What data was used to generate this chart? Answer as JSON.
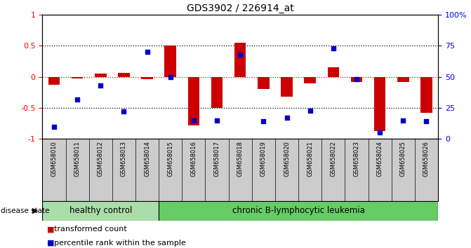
{
  "title": "GDS3902 / 226914_at",
  "samples": [
    "GSM658010",
    "GSM658011",
    "GSM658012",
    "GSM658013",
    "GSM658014",
    "GSM658015",
    "GSM658016",
    "GSM658017",
    "GSM658018",
    "GSM658019",
    "GSM658020",
    "GSM658021",
    "GSM658022",
    "GSM658023",
    "GSM658024",
    "GSM658025",
    "GSM658026"
  ],
  "transformed_count": [
    -0.13,
    -0.02,
    0.05,
    0.06,
    -0.04,
    0.5,
    -0.78,
    -0.5,
    0.55,
    -0.2,
    -0.32,
    -0.1,
    0.15,
    -0.08,
    -0.87,
    -0.08,
    -0.58
  ],
  "percentile_rank": [
    10,
    32,
    43,
    22,
    70,
    50,
    15,
    15,
    68,
    14,
    17,
    23,
    73,
    48,
    5,
    15,
    14
  ],
  "healthy_control_count": 5,
  "group_labels": [
    "healthy control",
    "chronic B-lymphocytic leukemia"
  ],
  "healthy_color": "#aaddaa",
  "leukemia_color": "#66cc66",
  "bar_color": "#CC0000",
  "dot_color": "#0000CC",
  "ylim": [
    -1,
    1
  ],
  "y2lim": [
    0,
    100
  ],
  "yticks": [
    -1,
    -0.5,
    0,
    0.5,
    1
  ],
  "y2ticks": [
    0,
    25,
    50,
    75,
    100
  ],
  "ytick_labels": [
    "-1",
    "-0.5",
    "0",
    "0.5",
    "1"
  ],
  "y2tick_labels": [
    "0",
    "25",
    "50",
    "75",
    "100%"
  ],
  "hline_vals": [
    -0.5,
    0,
    0.5
  ],
  "legend_items": [
    "transformed count",
    "percentile rank within the sample"
  ],
  "disease_state_label": "disease state"
}
